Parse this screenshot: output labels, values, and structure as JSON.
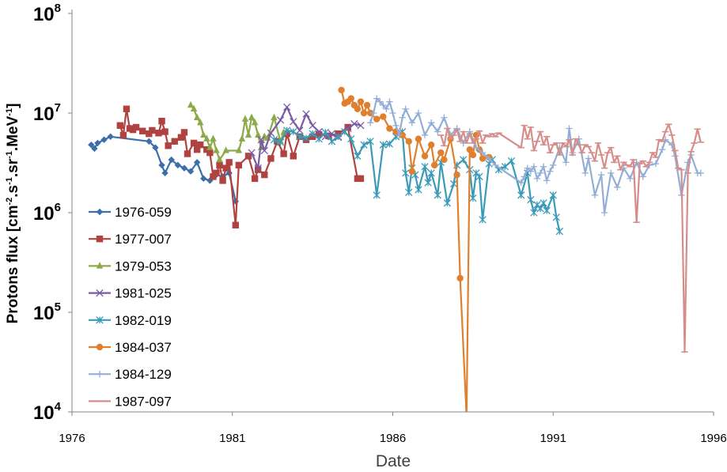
{
  "chart_data": {
    "type": "line",
    "xlabel": "Date",
    "ylabel": {
      "parts": [
        "Protons flux [cm",
        "-2",
        ".s",
        "-1",
        ".sr",
        "-1",
        ".MeV",
        "-1",
        "]"
      ]
    },
    "y_scale": "log",
    "xlim": [
      1976,
      1996
    ],
    "ylim": [
      10000,
      100000000
    ],
    "x_ticks": [
      "1976",
      "1981",
      "1986",
      "1991",
      "1996"
    ],
    "y_ticks": [
      {
        "base": "10",
        "exp": "4"
      },
      {
        "base": "10",
        "exp": "5"
      },
      {
        "base": "10",
        "exp": "6"
      },
      {
        "base": "10",
        "exp": "7"
      },
      {
        "base": "10",
        "exp": "8"
      }
    ],
    "legend_position": "left",
    "series": [
      {
        "name": "1976-059",
        "color": "#3c6eaa",
        "marker": "diamond",
        "x": [
          1976.6,
          1976.7,
          1976.8,
          1977.0,
          1977.2,
          1978.4,
          1978.6,
          1978.8,
          1978.9,
          1979.1,
          1979.3,
          1979.5,
          1979.7,
          1979.9,
          1980.1,
          1980.3,
          1980.5,
          1980.7,
          1980.9,
          1981.1
        ],
        "y": [
          4800000,
          4400000,
          5000000,
          5400000,
          5800000,
          5200000,
          4500000,
          3000000,
          2500000,
          3400000,
          3000000,
          2800000,
          2600000,
          3200000,
          2200000,
          2100000,
          2400000,
          2300000,
          2500000,
          1300000
        ]
      },
      {
        "name": "1977-007",
        "color": "#b0433f",
        "marker": "square",
        "x": [
          1977.5,
          1977.6,
          1977.7,
          1977.8,
          1977.9,
          1978.0,
          1978.2,
          1978.4,
          1978.5,
          1978.7,
          1978.8,
          1978.9,
          1979.0,
          1979.2,
          1979.4,
          1979.5,
          1979.6,
          1979.8,
          1979.9,
          1980.0,
          1980.2,
          1980.3,
          1980.4,
          1980.5,
          1980.6,
          1980.7,
          1980.8,
          1980.9,
          1981.1,
          1981.2,
          1981.5,
          1981.7,
          1981.8,
          1982.0,
          1982.2,
          1982.4,
          1982.6,
          1982.7,
          1982.9,
          1983.1,
          1983.3,
          1983.5,
          1983.7,
          1984.0,
          1984.3,
          1984.6,
          1984.9,
          1985.0
        ],
        "y": [
          7500000,
          6000000,
          11000000,
          7000000,
          6800000,
          7200000,
          6600000,
          6200000,
          6700000,
          6300000,
          8300000,
          6500000,
          4700000,
          5200000,
          5700000,
          6400000,
          3900000,
          5000000,
          4300000,
          4800000,
          4300000,
          4000000,
          2300000,
          2500000,
          3000000,
          2100000,
          2800000,
          3200000,
          750000,
          3000000,
          3700000,
          2200000,
          2700000,
          2400000,
          3500000,
          5200000,
          3900000,
          6200000,
          3700000,
          5800000,
          5400000,
          5800000,
          6100000,
          5900000,
          6200000,
          7200000,
          2200000,
          2200000
        ]
      },
      {
        "name": "1979-053",
        "color": "#8caa4a",
        "marker": "triangle",
        "x": [
          1979.7,
          1979.8,
          1979.9,
          1980.0,
          1980.1,
          1980.2,
          1980.3,
          1980.4,
          1980.5,
          1980.6,
          1980.8,
          1981.2,
          1981.3,
          1981.4,
          1981.5,
          1981.6,
          1981.7,
          1981.8,
          1981.9,
          1982.0,
          1982.1,
          1982.3,
          1982.5,
          1982.6
        ],
        "y": [
          12000000,
          11000000,
          9000000,
          8000000,
          6000000,
          5500000,
          4500000,
          5500000,
          4200000,
          3400000,
          4200000,
          4200000,
          5500000,
          8700000,
          6000000,
          9000000,
          8000000,
          6000000,
          4500000,
          5800000,
          5600000,
          9000000,
          5200000,
          6400000
        ]
      },
      {
        "name": "1981-025",
        "color": "#7b5aa6",
        "marker": "x",
        "x": [
          1981.6,
          1981.8,
          1981.9,
          1982.0,
          1982.2,
          1982.5,
          1982.7,
          1982.9,
          1983.1,
          1983.3,
          1983.5,
          1983.7,
          1983.9,
          1984.1,
          1984.3,
          1984.6,
          1984.8,
          1985.0
        ],
        "y": [
          4000000,
          2800000,
          5400000,
          4200000,
          6300000,
          8500000,
          11500000,
          8200000,
          6700000,
          9800000,
          7500000,
          6500000,
          5800000,
          6200000,
          5700000,
          7000000,
          7800000,
          7500000
        ]
      },
      {
        "name": "1982-019",
        "color": "#3a9ab8",
        "marker": "asterisk",
        "x": [
          1982.3,
          1982.5,
          1982.7,
          1982.9,
          1983.1,
          1983.3,
          1983.5,
          1983.7,
          1983.9,
          1984.1,
          1984.3,
          1984.5,
          1984.7,
          1984.9,
          1985.1,
          1985.3,
          1985.5,
          1985.7,
          1985.9,
          1986.1,
          1986.3,
          1986.4,
          1986.5,
          1986.6,
          1986.7,
          1986.8,
          1987.0,
          1987.1,
          1987.2,
          1987.4,
          1987.5,
          1987.7,
          1987.9,
          1988.0,
          1988.2,
          1988.4,
          1988.5,
          1988.6,
          1988.7,
          1988.8,
          1989.0,
          1989.1,
          1989.3,
          1989.5,
          1989.7,
          1990.0,
          1990.2,
          1990.3,
          1990.4,
          1990.5,
          1990.6,
          1990.7,
          1990.8,
          1991.0,
          1991.1,
          1991.2
        ],
        "y": [
          5400000,
          5100000,
          6700000,
          6500000,
          5800000,
          5600000,
          6200000,
          5500000,
          6400000,
          5200000,
          5800000,
          6500000,
          5500000,
          3700000,
          4800000,
          5200000,
          1500000,
          4800000,
          4900000,
          5800000,
          6500000,
          2500000,
          1600000,
          2800000,
          2400000,
          1700000,
          2900000,
          2000000,
          2500000,
          1500000,
          3200000,
          1250000,
          1950000,
          3000000,
          3400000,
          2700000,
          1400000,
          2500000,
          2300000,
          850000,
          3100000,
          3400000,
          2700000,
          2900000,
          3300000,
          1500000,
          2500000,
          1350000,
          1000000,
          1200000,
          1100000,
          1250000,
          1050000,
          1500000,
          900000,
          650000
        ]
      },
      {
        "name": "1984-037",
        "color": "#e07f2d",
        "marker": "circle",
        "x": [
          1984.4,
          1984.5,
          1984.6,
          1984.7,
          1984.8,
          1984.9,
          1985.0,
          1985.1,
          1985.2,
          1985.3,
          1985.5,
          1985.7,
          1985.9,
          1986.1,
          1986.3,
          1986.5,
          1986.6,
          1986.8,
          1987.0,
          1987.2,
          1987.3,
          1987.5,
          1987.6,
          1987.8,
          1988.0,
          1988.1,
          1988.3,
          1988.4,
          1988.5,
          1988.6,
          1988.7,
          1988.8,
          1989.0
        ],
        "y": [
          17000000,
          12500000,
          13000000,
          14000000,
          12000000,
          11000000,
          13000000,
          10000000,
          12000000,
          10000000,
          8700000,
          9200000,
          7000000,
          6500000,
          6000000,
          5200000,
          2600000,
          5500000,
          3700000,
          4800000,
          3000000,
          4000000,
          3400000,
          5500000,
          2400000,
          220000,
          9000,
          4300000,
          3800000,
          6000000,
          4300000,
          3500000,
          3600000
        ]
      },
      {
        "name": "1984-129",
        "color": "#93aed6",
        "marker": "plus",
        "x": [
          1985.3,
          1985.4,
          1985.5,
          1985.6,
          1985.7,
          1985.8,
          1985.9,
          1986.0,
          1986.1,
          1986.2,
          1986.3,
          1986.4,
          1986.6,
          1986.8,
          1987.0,
          1987.2,
          1987.4,
          1987.6,
          1987.8,
          1988.0,
          1988.2,
          1988.4,
          1988.6,
          1988.8,
          1989.0,
          1989.2,
          1990.0,
          1990.1,
          1990.2,
          1990.3,
          1990.4,
          1990.5,
          1990.6,
          1990.7,
          1990.8,
          1990.9,
          1991.0,
          1991.2,
          1991.4,
          1991.5,
          1991.6,
          1991.8,
          1992.0,
          1992.1,
          1992.3,
          1992.5,
          1992.6,
          1992.8,
          1993.0,
          1993.2,
          1993.4,
          1993.6,
          1993.8,
          1994.0,
          1994.2,
          1994.4,
          1994.5,
          1994.7,
          1994.8,
          1995.0,
          1995.2,
          1995.3,
          1995.5,
          1995.6
        ],
        "y": [
          8000000,
          10000000,
          14000000,
          13000000,
          12000000,
          11000000,
          13000000,
          10000000,
          7500000,
          6000000,
          9000000,
          11000000,
          8000000,
          10000000,
          6000000,
          8000000,
          6500000,
          9000000,
          6000000,
          7000000,
          5000000,
          6500000,
          4500000,
          4000000,
          3500000,
          3000000,
          2000000,
          2300000,
          2800000,
          2600000,
          2900000,
          2200000,
          2500000,
          2900000,
          2100000,
          2600000,
          3000000,
          4500000,
          3200000,
          7000000,
          4000000,
          5500000,
          2500000,
          3500000,
          1500000,
          2400000,
          1000000,
          2500000,
          1800000,
          2800000,
          2200000,
          3200000,
          2300000,
          3000000,
          3100000,
          4300000,
          5400000,
          4800000,
          3700000,
          1500000,
          3200000,
          3800000,
          2500000,
          2500000
        ]
      },
      {
        "name": "1987-097",
        "color": "#d68d8a",
        "marker": "dash",
        "x": [
          1987.5,
          1987.6,
          1987.7,
          1987.8,
          1987.9,
          1988.0,
          1988.1,
          1988.2,
          1988.3,
          1988.4,
          1988.5,
          1988.6,
          1988.7,
          1988.8,
          1988.9,
          1989.0,
          1989.1,
          1989.2,
          1989.3,
          1990.0,
          1990.1,
          1990.2,
          1990.3,
          1990.4,
          1990.5,
          1990.6,
          1990.7,
          1990.8,
          1990.9,
          1991.0,
          1991.1,
          1991.2,
          1991.3,
          1991.4,
          1991.5,
          1991.6,
          1991.7,
          1991.8,
          1991.9,
          1992.0,
          1992.1,
          1992.2,
          1992.3,
          1992.4,
          1992.5,
          1992.6,
          1992.7,
          1992.8,
          1992.9,
          1993.0,
          1993.1,
          1993.2,
          1993.3,
          1993.4,
          1993.5,
          1993.6,
          1993.7,
          1993.8,
          1993.9,
          1994.0,
          1994.1,
          1994.2,
          1994.3,
          1994.4,
          1994.5,
          1994.6,
          1994.7,
          1994.8,
          1994.9,
          1995.0,
          1995.1,
          1995.2,
          1995.3,
          1995.4,
          1995.5,
          1995.6
        ],
        "y": [
          6000000,
          4700000,
          7000000,
          5500000,
          6000000,
          6800000,
          5200000,
          6500000,
          5000000,
          6200000,
          5000000,
          5500000,
          6600000,
          5000000,
          6000000,
          5800000,
          6200000,
          5800000,
          6300000,
          4500000,
          7500000,
          5500000,
          7200000,
          4200000,
          5200000,
          6500000,
          4800000,
          5800000,
          4000000,
          4800000,
          5000000,
          3800000,
          5000000,
          4600000,
          5400000,
          3800000,
          5500000,
          4800000,
          4000000,
          4800000,
          4600000,
          4000000,
          3300000,
          5000000,
          3800000,
          2800000,
          4000000,
          4500000,
          3200000,
          3700000,
          2700000,
          3200000,
          3000000,
          2900000,
          3400000,
          800000,
          3100000,
          3300000,
          2900000,
          3200000,
          4000000,
          3600000,
          5400000,
          5200000,
          6500000,
          7700000,
          6000000,
          4200000,
          2800000,
          2700000,
          40000,
          2500000,
          4100000,
          5000000,
          6900000,
          5100000
        ]
      }
    ]
  }
}
